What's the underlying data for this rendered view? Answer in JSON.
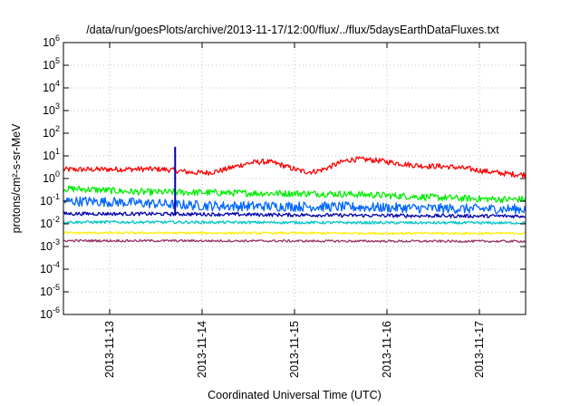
{
  "chart_data": {
    "type": "line",
    "title": "/data/run/goesPlots/archive/2013-11-17/12:00/flux/../flux/5daysEarthDataFluxes.txt",
    "xlabel": "Coordinated Universal Time (UTC)",
    "ylabel": "protons/cm²-s-sr-MeV",
    "y_scale": "log",
    "ylim": [
      1e-06,
      1000000.0
    ],
    "y_ticks": [
      {
        "base": "10",
        "exp": "-6",
        "value": 1e-06
      },
      {
        "base": "10",
        "exp": "-5",
        "value": 1e-05
      },
      {
        "base": "10",
        "exp": "-4",
        "value": 0.0001
      },
      {
        "base": "10",
        "exp": "-3",
        "value": 0.001
      },
      {
        "base": "10",
        "exp": "-2",
        "value": 0.01
      },
      {
        "base": "10",
        "exp": "-1",
        "value": 0.1
      },
      {
        "base": "10",
        "exp": "0",
        "value": 1
      },
      {
        "base": "10",
        "exp": "1",
        "value": 10
      },
      {
        "base": "10",
        "exp": "2",
        "value": 100
      },
      {
        "base": "10",
        "exp": "3",
        "value": 1000
      },
      {
        "base": "10",
        "exp": "4",
        "value": 10000
      },
      {
        "base": "10",
        "exp": "5",
        "value": 100000
      },
      {
        "base": "10",
        "exp": "6",
        "value": 1000000
      }
    ],
    "xlim": [
      "2013-11-12T12:00",
      "2013-11-17T12:00"
    ],
    "x_ticks": [
      "2013-11-13",
      "2013-11-14",
      "2013-11-15",
      "2013-11-16",
      "2013-11-17"
    ],
    "grid": true,
    "series": [
      {
        "color": "#ff0000",
        "typical_value": 2.0,
        "noise_decades": 0.12,
        "features": [
          {
            "at": "2013-11-12T12:00",
            "value": 2.5
          },
          {
            "at": "2013-11-13T12:00",
            "value": 2.6
          },
          {
            "at": "2013-11-14T00:00",
            "value": 1.8
          },
          {
            "at": "2013-11-14T16:00",
            "value": 5.5
          },
          {
            "at": "2013-11-15T04:00",
            "value": 2.0
          },
          {
            "at": "2013-11-15T16:00",
            "value": 7.0
          },
          {
            "at": "2013-11-16T12:00",
            "value": 3.5
          },
          {
            "at": "2013-11-17T12:00",
            "value": 1.5
          }
        ]
      },
      {
        "color": "#00ee00",
        "typical_value": 0.2,
        "noise_decades": 0.15,
        "features": [
          {
            "at": "2013-11-12T12:00",
            "value": 0.35
          },
          {
            "at": "2013-11-13T12:00",
            "value": 0.25
          },
          {
            "at": "2013-11-15T00:00",
            "value": 0.22
          },
          {
            "at": "2013-11-17T12:00",
            "value": 0.12
          }
        ]
      },
      {
        "color": "#0066ff",
        "typical_value": 0.06,
        "noise_decades": 0.22,
        "features": [
          {
            "at": "2013-11-12T12:00",
            "value": 0.1
          },
          {
            "at": "2013-11-14T12:00",
            "value": 0.06
          },
          {
            "at": "2013-11-17T12:00",
            "value": 0.045
          }
        ]
      },
      {
        "color": "#0000aa",
        "typical_value": 0.025,
        "noise_decades": 0.08,
        "features": [
          {
            "at": "2013-11-12T12:00",
            "value": 0.028
          },
          {
            "at": "2013-11-17T12:00",
            "value": 0.022
          }
        ],
        "spike": {
          "at": "2013-11-13T17:00",
          "value": 25
        }
      },
      {
        "color": "#00c8c8",
        "typical_value": 0.012,
        "noise_decades": 0.06,
        "features": [
          {
            "at": "2013-11-12T12:00",
            "value": 0.012
          },
          {
            "at": "2013-11-17T12:00",
            "value": 0.011
          }
        ]
      },
      {
        "color": "#ffee00",
        "typical_value": 0.004,
        "noise_decades": 0.05,
        "features": [
          {
            "at": "2013-11-12T12:00",
            "value": 0.004
          },
          {
            "at": "2013-11-17T12:00",
            "value": 0.0038
          }
        ]
      },
      {
        "color": "#993366",
        "typical_value": 0.0018,
        "noise_decades": 0.05,
        "features": [
          {
            "at": "2013-11-12T12:00",
            "value": 0.0018
          },
          {
            "at": "2013-11-17T12:00",
            "value": 0.0017
          }
        ]
      }
    ]
  }
}
